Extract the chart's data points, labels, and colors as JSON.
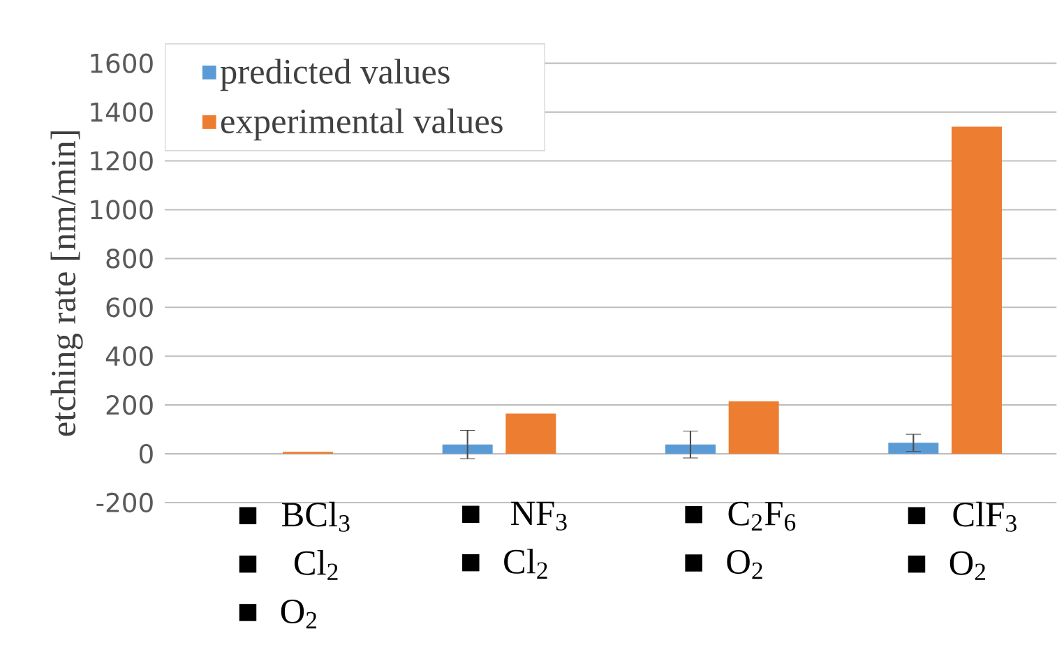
{
  "chart_data": {
    "type": "bar",
    "ylabel": "etching rate [nm/min]",
    "categories": [
      "■ BCl$_{3}$ ■ Cl$_{2}$ ■ O$_{2}$",
      "■ NF$_{3}$ ■ Cl$_{2}$",
      "■ C$_{2}$F$_{6}$ ■ O$_{2}$",
      "■ ClF$_{3}$ ■ O$_{2}$"
    ],
    "series": [
      {
        "name": "predicted values",
        "color": "#5b9bd5",
        "values": [
          null,
          38,
          38,
          45
        ],
        "errors": [
          null,
          58,
          55,
          35
        ]
      },
      {
        "name": "experimental values",
        "color": "#ed7d31",
        "values": [
          8,
          165,
          215,
          1340
        ]
      }
    ],
    "ylim": [
      -200,
      1600
    ],
    "yticks": [
      -200,
      0,
      200,
      400,
      600,
      800,
      1000,
      1200,
      1400,
      1600
    ],
    "grid": "y",
    "legend": "top left"
  }
}
